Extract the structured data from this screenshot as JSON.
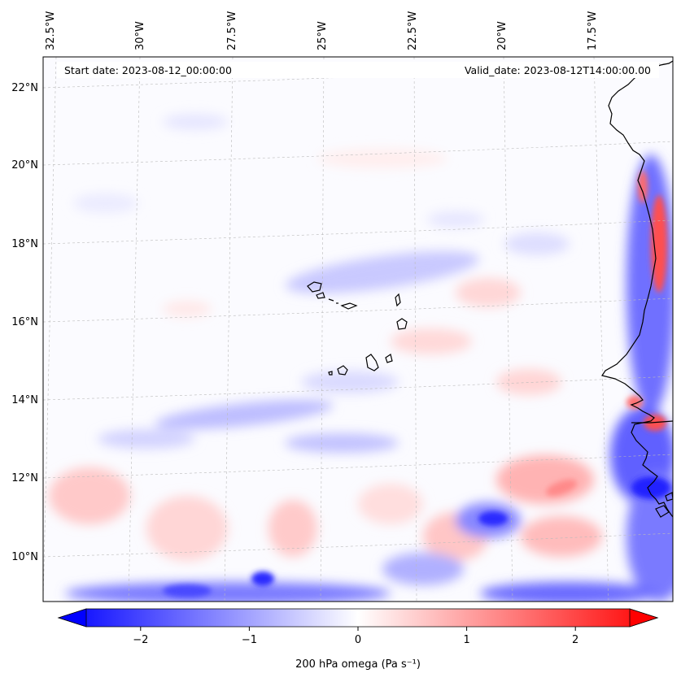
{
  "header": {
    "start_date": "Start date: 2023-08-12_00:00:00",
    "valid_date": "Valid_date: 2023-08-12T14:00:00.00"
  },
  "lon_labels": [
    "32.5°W",
    "30°W",
    "27.5°W",
    "25°W",
    "22.5°W",
    "20°W",
    "17.5°W"
  ],
  "lat_labels": [
    "22°N",
    "20°N",
    "18°N",
    "16°N",
    "14°N",
    "12°N",
    "10°N"
  ],
  "colorbar": {
    "ticks": [
      "−2",
      "−1",
      "0",
      "1",
      "2"
    ],
    "tick_values": [
      -2,
      -1,
      0,
      1,
      2
    ],
    "range": [
      -2.5,
      2.5
    ],
    "label": "200 hPa omega (Pa s⁻¹)",
    "colors": {
      "negative": "#0000ff",
      "zero": "#ffffff",
      "positive": "#ff0000"
    },
    "extend": "both"
  },
  "map": {
    "field": "200 hPa omega",
    "colormap": "bwr",
    "features": [
      "West African coastline",
      "Cape Verde islands"
    ]
  }
}
